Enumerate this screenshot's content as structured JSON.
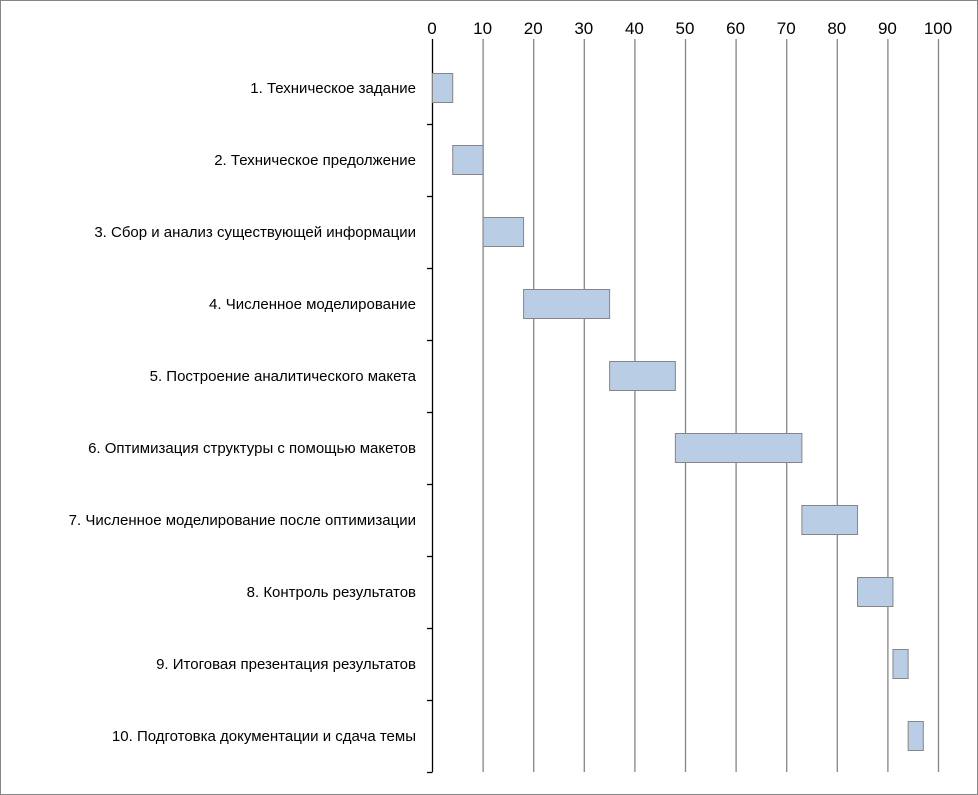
{
  "chart_data": {
    "type": "gantt",
    "title": "",
    "xlabel": "",
    "ylabel": "",
    "xlim": [
      0,
      100
    ],
    "x_ticks": [
      "0",
      "10",
      "20",
      "30",
      "40",
      "50",
      "60",
      "70",
      "80",
      "90",
      "100"
    ],
    "x_axis_position": "top",
    "grid": "vertical",
    "legend": "none",
    "bar_color": "#b9cde5",
    "bar_border": "#868686",
    "tasks": [
      {
        "label": "1. Техническое задание",
        "start": 0,
        "end": 4
      },
      {
        "label": "2. Техническое предолжение",
        "start": 4,
        "end": 10
      },
      {
        "label": "3. Сбор и анализ существующей информации",
        "start": 10,
        "end": 18
      },
      {
        "label": "4. Численное моделирование",
        "start": 18,
        "end": 35
      },
      {
        "label": "5. Построение аналитического макета",
        "start": 35,
        "end": 48
      },
      {
        "label": "6. Оптимизация структуры с помощью макетов",
        "start": 48,
        "end": 73
      },
      {
        "label": "7. Численное моделирование после оптимизации",
        "start": 73,
        "end": 84
      },
      {
        "label": "8. Контроль результатов",
        "start": 84,
        "end": 91
      },
      {
        "label": "9. Итоговая презентация результатов",
        "start": 91,
        "end": 94
      },
      {
        "label": "10. Подготовка документации и сдача темы",
        "start": 94,
        "end": 97
      }
    ]
  }
}
